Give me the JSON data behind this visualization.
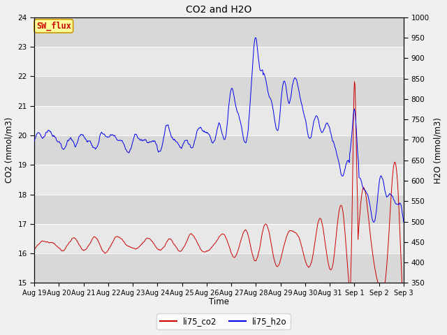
{
  "title": "CO2 and H2O",
  "xlabel": "Time",
  "ylabel_left": "CO2 (mmol/m3)",
  "ylabel_right": "H2O (mmol/m3)",
  "ylim_left": [
    15.0,
    24.0
  ],
  "ylim_right": [
    350,
    1000
  ],
  "yticks_left": [
    15.0,
    16.0,
    17.0,
    18.0,
    19.0,
    20.0,
    21.0,
    22.0,
    23.0,
    24.0
  ],
  "yticks_right": [
    350,
    400,
    450,
    500,
    550,
    600,
    650,
    700,
    750,
    800,
    850,
    900,
    950,
    1000
  ],
  "co2_color": "#cc0000",
  "h2o_color": "#0000ee",
  "bg_color": "#f0f0f0",
  "plot_bg_light": "#e8e8e8",
  "plot_bg_dark": "#d8d8d8",
  "annotation_text": "SW_flux",
  "annotation_color": "#cc0000",
  "annotation_bg": "#ffff99",
  "annotation_border": "#cc9900",
  "legend_co2": "li75_co2",
  "legend_h2o": "li75_h2o",
  "seed": 42
}
